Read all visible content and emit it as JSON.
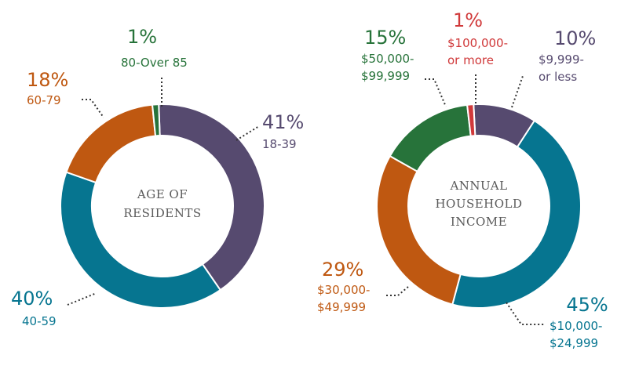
{
  "chart_data": [
    {
      "type": "pie",
      "title": "AGE OF RESIDENTS",
      "slices": [
        {
          "pct": "41%",
          "label": "18-39",
          "value": 41,
          "color": "#564a6f"
        },
        {
          "pct": "40%",
          "label": "40-59",
          "value": 40,
          "color": "#067590"
        },
        {
          "pct": "18%",
          "label": "60-79",
          "value": 18,
          "color": "#bf5811"
        },
        {
          "pct": "1%",
          "label": "80-Over 85",
          "value": 1,
          "color": "#27733a"
        }
      ]
    },
    {
      "type": "pie",
      "title": "ANNUAL HOUSEHOLD INCOME",
      "slices": [
        {
          "pct": "10%",
          "label": "$9,999- or less",
          "value": 10,
          "color": "#564a6f"
        },
        {
          "pct": "45%",
          "label": "$10,000- $24,999",
          "value": 45,
          "color": "#067590"
        },
        {
          "pct": "29%",
          "label": "$30,000- $49,999",
          "value": 29,
          "color": "#bf5811"
        },
        {
          "pct": "15%",
          "label": "$50,000- $99,999",
          "value": 15,
          "color": "#27733a"
        },
        {
          "pct": "1%",
          "label": "$100,000- or more",
          "value": 1,
          "color": "#d0393a"
        }
      ]
    }
  ]
}
